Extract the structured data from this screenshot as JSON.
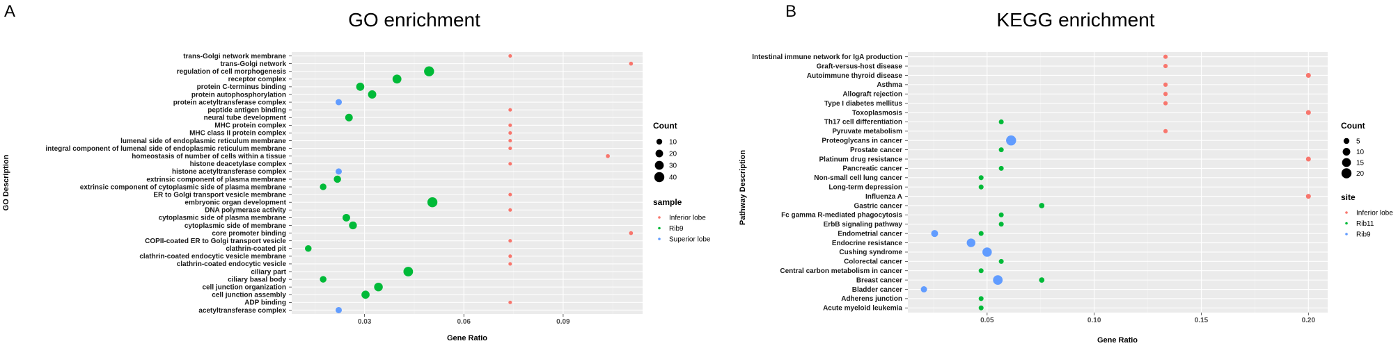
{
  "chart_data": [
    {
      "panel_label": "A",
      "type": "scatter",
      "title": "GO enrichment",
      "xlabel": "Gene Ratio",
      "ylabel": "GO Description",
      "xlim": [
        0.008,
        0.114
      ],
      "xticks": [
        0.03,
        0.06,
        0.09
      ],
      "xtick_labels": [
        "0.03",
        "0.06",
        "0.09"
      ],
      "grid": true,
      "categories": [
        "trans-Golgi network membrane",
        "trans-Golgi network",
        "regulation of cell morphogenesis",
        "receptor complex",
        "protein C-terminus binding",
        "protein autophosphorylation",
        "protein acetyltransferase complex",
        "peptide antigen binding",
        "neural tube development",
        "MHC protein complex",
        "MHC class II protein complex",
        "lumenal side of endoplasmic reticulum membrane",
        "integral component of lumenal side of endoplasmic reticulum membrane",
        "homeostasis of number of cells within a tissue",
        "histone deacetylase complex",
        "histone acetyltransferase complex",
        "extrinsic component of plasma membrane",
        "extrinsic component of cytoplasmic side of plasma membrane",
        "ER to Golgi transport vesicle membrane",
        "embryonic organ development",
        "DNA polymerase activity",
        "cytoplasmic side of plasma membrane",
        "cytoplasmic side of membrane",
        "core promoter binding",
        "COPII-coated ER to Golgi transport vesicle",
        "clathrin-coated pit",
        "clathrin-coated endocytic vesicle membrane",
        "clathrin-coated endocytic vesicle",
        "ciliary part",
        "ciliary basal body",
        "cell junction organization",
        "cell junction assembly",
        "ADP binding",
        "acetyltransferase complex"
      ],
      "points": [
        {
          "category": "trans-Golgi network membrane",
          "x": 0.074,
          "group": "Inferior lobe",
          "count": 2
        },
        {
          "category": "trans-Golgi network",
          "x": 0.1105,
          "group": "Inferior lobe",
          "count": 3
        },
        {
          "category": "regulation of cell morphogenesis",
          "x": 0.0495,
          "group": "Rib9",
          "count": 40
        },
        {
          "category": "receptor complex",
          "x": 0.0398,
          "group": "Rib9",
          "count": 30
        },
        {
          "category": "protein C-terminus binding",
          "x": 0.0287,
          "group": "Rib9",
          "count": 24
        },
        {
          "category": "protein autophosphorylation",
          "x": 0.0323,
          "group": "Rib9",
          "count": 25
        },
        {
          "category": "protein acetyltransferase complex",
          "x": 0.0222,
          "group": "Superior lobe",
          "count": 12
        },
        {
          "category": "peptide antigen binding",
          "x": 0.074,
          "group": "Inferior lobe",
          "count": 2
        },
        {
          "category": "neural tube development",
          "x": 0.0253,
          "group": "Rib9",
          "count": 20
        },
        {
          "category": "MHC protein complex",
          "x": 0.074,
          "group": "Inferior lobe",
          "count": 2
        },
        {
          "category": "MHC class II protein complex",
          "x": 0.074,
          "group": "Inferior lobe",
          "count": 2
        },
        {
          "category": "lumenal side of endoplasmic reticulum membrane",
          "x": 0.074,
          "group": "Inferior lobe",
          "count": 2
        },
        {
          "category": "integral component of lumenal side of endoplasmic reticulum membrane",
          "x": 0.074,
          "group": "Inferior lobe",
          "count": 2
        },
        {
          "category": "homeostasis of number of cells within a tissue",
          "x": 0.1035,
          "group": "Inferior lobe",
          "count": 3
        },
        {
          "category": "histone deacetylase complex",
          "x": 0.074,
          "group": "Inferior lobe",
          "count": 2
        },
        {
          "category": "histone acetyltransferase complex",
          "x": 0.0222,
          "group": "Superior lobe",
          "count": 12
        },
        {
          "category": "extrinsic component of plasma membrane",
          "x": 0.0218,
          "group": "Rib9",
          "count": 18
        },
        {
          "category": "extrinsic component of cytoplasmic side of plasma membrane",
          "x": 0.0175,
          "group": "Rib9",
          "count": 14
        },
        {
          "category": "ER to Golgi transport vesicle membrane",
          "x": 0.074,
          "group": "Inferior lobe",
          "count": 2
        },
        {
          "category": "embryonic organ development",
          "x": 0.0505,
          "group": "Rib9",
          "count": 40
        },
        {
          "category": "DNA polymerase activity",
          "x": 0.074,
          "group": "Inferior lobe",
          "count": 2
        },
        {
          "category": "cytoplasmic side of plasma membrane",
          "x": 0.0245,
          "group": "Rib9",
          "count": 20
        },
        {
          "category": "cytoplasmic side of membrane",
          "x": 0.0265,
          "group": "Rib9",
          "count": 22
        },
        {
          "category": "core promoter binding",
          "x": 0.1105,
          "group": "Inferior lobe",
          "count": 3
        },
        {
          "category": "COPII-coated ER to Golgi transport vesicle",
          "x": 0.074,
          "group": "Inferior lobe",
          "count": 2
        },
        {
          "category": "clathrin-coated pit",
          "x": 0.013,
          "group": "Rib9",
          "count": 14
        },
        {
          "category": "clathrin-coated endocytic vesicle membrane",
          "x": 0.074,
          "group": "Inferior lobe",
          "count": 2
        },
        {
          "category": "clathrin-coated endocytic vesicle",
          "x": 0.074,
          "group": "Inferior lobe",
          "count": 2
        },
        {
          "category": "ciliary part",
          "x": 0.0432,
          "group": "Rib9",
          "count": 36
        },
        {
          "category": "ciliary basal body",
          "x": 0.0175,
          "group": "Rib9",
          "count": 14
        },
        {
          "category": "cell junction organization",
          "x": 0.0342,
          "group": "Rib9",
          "count": 28
        },
        {
          "category": "cell junction assembly",
          "x": 0.0303,
          "group": "Rib9",
          "count": 24
        },
        {
          "category": "ADP binding",
          "x": 0.074,
          "group": "Inferior lobe",
          "count": 2
        },
        {
          "category": "acetyltransferase complex",
          "x": 0.0222,
          "group": "Superior lobe",
          "count": 12
        }
      ],
      "size_legend": {
        "title": "Count",
        "values": [
          10,
          20,
          30,
          40
        ]
      },
      "color_legend": {
        "title": "sample",
        "entries": [
          {
            "label": "Inferior lobe",
            "color": "#F8766D"
          },
          {
            "label": "Rib9",
            "color": "#00BA38"
          },
          {
            "label": "Superior lobe",
            "color": "#619CFF"
          }
        ]
      }
    },
    {
      "panel_label": "B",
      "type": "scatter",
      "title": "KEGG enrichment",
      "xlabel": "Gene Ratio",
      "ylabel": "Pathway Description",
      "xlim": [
        0.013,
        0.209
      ],
      "xticks": [
        0.05,
        0.1,
        0.15,
        0.2
      ],
      "xtick_labels": [
        "0.05",
        "0.10",
        "0.15",
        "0.20"
      ],
      "grid": true,
      "categories": [
        "Intestinal immune network for IgA production",
        "Graft-versus-host disease",
        "Autoimmune thyroid disease",
        "Asthma",
        "Allograft rejection",
        "Type I diabetes mellitus",
        "Toxoplasmosis",
        "Th17 cell differentiation",
        "Pyruvate metabolism",
        "Proteoglycans in cancer",
        "Prostate cancer",
        "Platinum drug resistance",
        "Pancreatic cancer",
        "Non-small cell lung cancer",
        "Long-term depression",
        "Influenza A",
        "Gastric cancer",
        "Fc gamma R-mediated phagocytosis",
        "ErbB signaling pathway",
        "Endometrial cancer",
        "Endocrine resistance",
        "Cushing syndrome",
        "Colorectal cancer",
        "Central carbon metabolism in cancer",
        "Breast cancer",
        "Bladder cancer",
        "Adherens junction",
        "Acute myeloid leukemia"
      ],
      "points": [
        {
          "category": "Intestinal immune network for IgA production",
          "x": 0.1333,
          "group": "Inferior lobe",
          "count": 2
        },
        {
          "category": "Graft-versus-host disease",
          "x": 0.1333,
          "group": "Inferior lobe",
          "count": 2
        },
        {
          "category": "Autoimmune thyroid disease",
          "x": 0.2,
          "group": "Inferior lobe",
          "count": 3
        },
        {
          "category": "Asthma",
          "x": 0.1333,
          "group": "Inferior lobe",
          "count": 2
        },
        {
          "category": "Allograft rejection",
          "x": 0.1333,
          "group": "Inferior lobe",
          "count": 2
        },
        {
          "category": "Type I diabetes mellitus",
          "x": 0.1333,
          "group": "Inferior lobe",
          "count": 2
        },
        {
          "category": "Toxoplasmosis",
          "x": 0.2,
          "group": "Inferior lobe",
          "count": 3
        },
        {
          "category": "Th17 cell differentiation",
          "x": 0.0566,
          "group": "Rib11",
          "count": 3
        },
        {
          "category": "Pyruvate metabolism",
          "x": 0.1333,
          "group": "Inferior lobe",
          "count": 2
        },
        {
          "category": "Proteoglycans in cancer",
          "x": 0.0612,
          "group": "Rib9",
          "count": 20
        },
        {
          "category": "Prostate cancer",
          "x": 0.0566,
          "group": "Rib11",
          "count": 3
        },
        {
          "category": "Platinum drug resistance",
          "x": 0.2,
          "group": "Inferior lobe",
          "count": 3
        },
        {
          "category": "Pancreatic cancer",
          "x": 0.0566,
          "group": "Rib11",
          "count": 3
        },
        {
          "category": "Non-small cell lung cancer",
          "x": 0.0472,
          "group": "Rib11",
          "count": 3
        },
        {
          "category": "Long-term depression",
          "x": 0.0472,
          "group": "Rib11",
          "count": 3
        },
        {
          "category": "Influenza A",
          "x": 0.2,
          "group": "Inferior lobe",
          "count": 3
        },
        {
          "category": "Gastric cancer",
          "x": 0.0755,
          "group": "Rib11",
          "count": 4
        },
        {
          "category": "Fc gamma R-mediated phagocytosis",
          "x": 0.0566,
          "group": "Rib11",
          "count": 3
        },
        {
          "category": "ErbB signaling pathway",
          "x": 0.0566,
          "group": "Rib11",
          "count": 3
        },
        {
          "category": "Endometrial cancer",
          "x": 0.0255,
          "group": "Rib9",
          "count": 8
        },
        {
          "category": "Endometrial cancer",
          "x": 0.0472,
          "group": "Rib11",
          "count": 3
        },
        {
          "category": "Endocrine resistance",
          "x": 0.0425,
          "group": "Rib9",
          "count": 14
        },
        {
          "category": "Cushing syndrome",
          "x": 0.05,
          "group": "Rib9",
          "count": 17
        },
        {
          "category": "Colorectal cancer",
          "x": 0.0566,
          "group": "Rib11",
          "count": 3
        },
        {
          "category": "Central carbon metabolism in cancer",
          "x": 0.0472,
          "group": "Rib11",
          "count": 3
        },
        {
          "category": "Breast cancer",
          "x": 0.055,
          "group": "Rib9",
          "count": 18
        },
        {
          "category": "Breast cancer",
          "x": 0.0755,
          "group": "Rib11",
          "count": 4
        },
        {
          "category": "Bladder cancer",
          "x": 0.0205,
          "group": "Rib9",
          "count": 6
        },
        {
          "category": "Adherens junction",
          "x": 0.0472,
          "group": "Rib11",
          "count": 3
        },
        {
          "category": "Acute myeloid leukemia",
          "x": 0.0472,
          "group": "Rib11",
          "count": 3
        }
      ],
      "size_legend": {
        "title": "Count",
        "values": [
          5,
          10,
          15,
          20
        ]
      },
      "color_legend": {
        "title": "site",
        "entries": [
          {
            "label": "Inferior lobe",
            "color": "#F8766D"
          },
          {
            "label": "Rib11",
            "color": "#00BA38"
          },
          {
            "label": "Rib9",
            "color": "#619CFF"
          }
        ]
      }
    }
  ]
}
